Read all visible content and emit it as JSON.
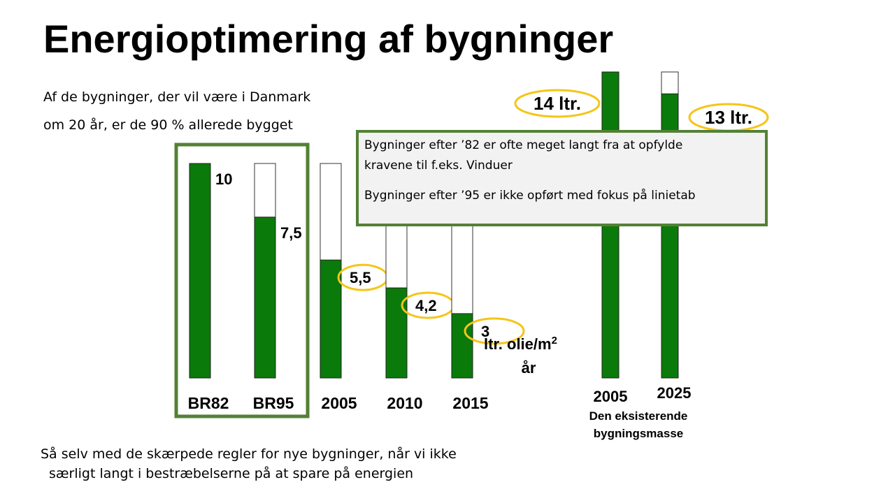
{
  "title": "Energioptimering af bygninger",
  "intro": {
    "line1": "Af de bygninger, der vil være i Danmark",
    "line2": "om 20 år, er de 90 % allerede bygget"
  },
  "callout": {
    "line1": "Bygninger efter ’82 er ofte meget langt fra at opfylde",
    "line2": "kravene til f.eks. Vinduer",
    "line3": "Bygninger efter ’95 er ikke opført med fokus på linietab"
  },
  "footer": {
    "line1": "Så selv med de skærpede regler for nye bygninger, når vi ikke",
    "line2": "særligt langt i bestræbelserne på at spare på energien"
  },
  "colors": {
    "bar_fill": "#0a7a0a",
    "highlight_ring": "#f5c518",
    "box_border": "#538135"
  },
  "chart_data": [
    {
      "type": "bar",
      "categories": [
        "BR82",
        "BR95",
        "2005",
        "2010",
        "2015"
      ],
      "values": [
        10,
        7.5,
        5.5,
        4.2,
        3
      ],
      "value_labels": [
        "10",
        "7,5",
        "5,5",
        "4,2",
        "3"
      ],
      "ylabel_line1": "ltr. olie/m",
      "ylabel_sup": "2",
      "ylabel_line2": "år",
      "ylim": [
        0,
        10
      ],
      "highlighted": [
        "2005",
        "2010",
        "2015"
      ]
    },
    {
      "type": "bar",
      "categories": [
        "2005",
        "2025"
      ],
      "values": [
        14,
        13
      ],
      "value_labels": [
        "14 ltr.",
        "13 ltr."
      ],
      "xlabel_line1": "Den eksisterende",
      "xlabel_line2": "bygningsmasse",
      "ylim": [
        0,
        14
      ]
    }
  ]
}
